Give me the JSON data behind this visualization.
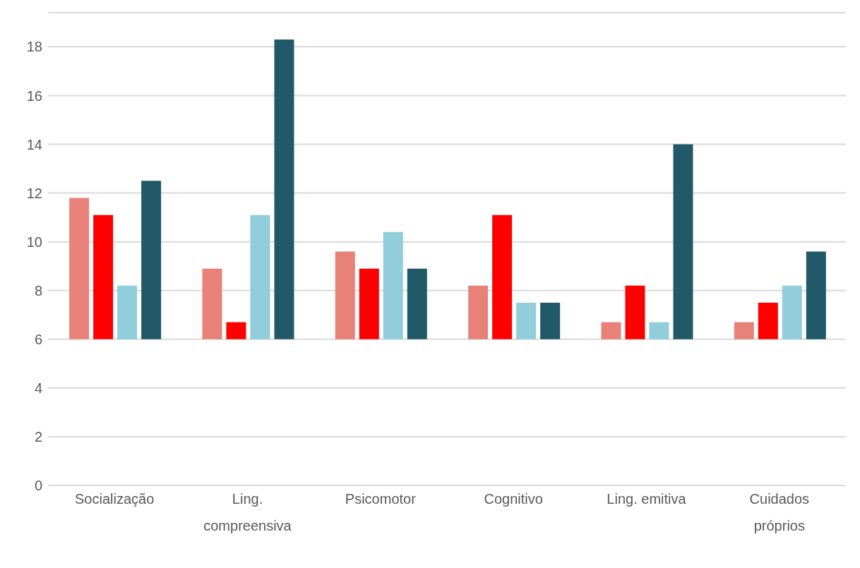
{
  "chart_data": {
    "type": "bar",
    "categories": [
      "Socialização",
      "Ling. compreensiva",
      "Psicomotor",
      "Cognitivo",
      "Ling. emitiva",
      "Cuidados próprios"
    ],
    "series": [
      {
        "color": "#e88279",
        "base": [
          6,
          6,
          6,
          6,
          6,
          6
        ],
        "values": [
          5.8,
          2.9,
          3.6,
          2.2,
          0.7,
          0.7
        ]
      },
      {
        "color": "#ff0000",
        "base": [
          6,
          6,
          6,
          6,
          6,
          6
        ],
        "values": [
          5.1,
          0.7,
          2.9,
          5.1,
          2.2,
          1.5
        ]
      },
      {
        "color": "#92cddc",
        "base": [
          6,
          6,
          6,
          6,
          6,
          6
        ],
        "values": [
          2.2,
          5.1,
          4.4,
          1.5,
          0.7,
          2.2
        ]
      },
      {
        "color": "#215968",
        "base": [
          6,
          6,
          6,
          6,
          6,
          6
        ],
        "values": [
          6.5,
          12.3,
          2.9,
          1.5,
          8.0,
          3.6
        ]
      }
    ],
    "ylim": [
      0,
      19.4
    ],
    "yticks": [
      0,
      2,
      4,
      6,
      8,
      10,
      12,
      14,
      16,
      18
    ],
    "grid": "y",
    "legend": false
  }
}
